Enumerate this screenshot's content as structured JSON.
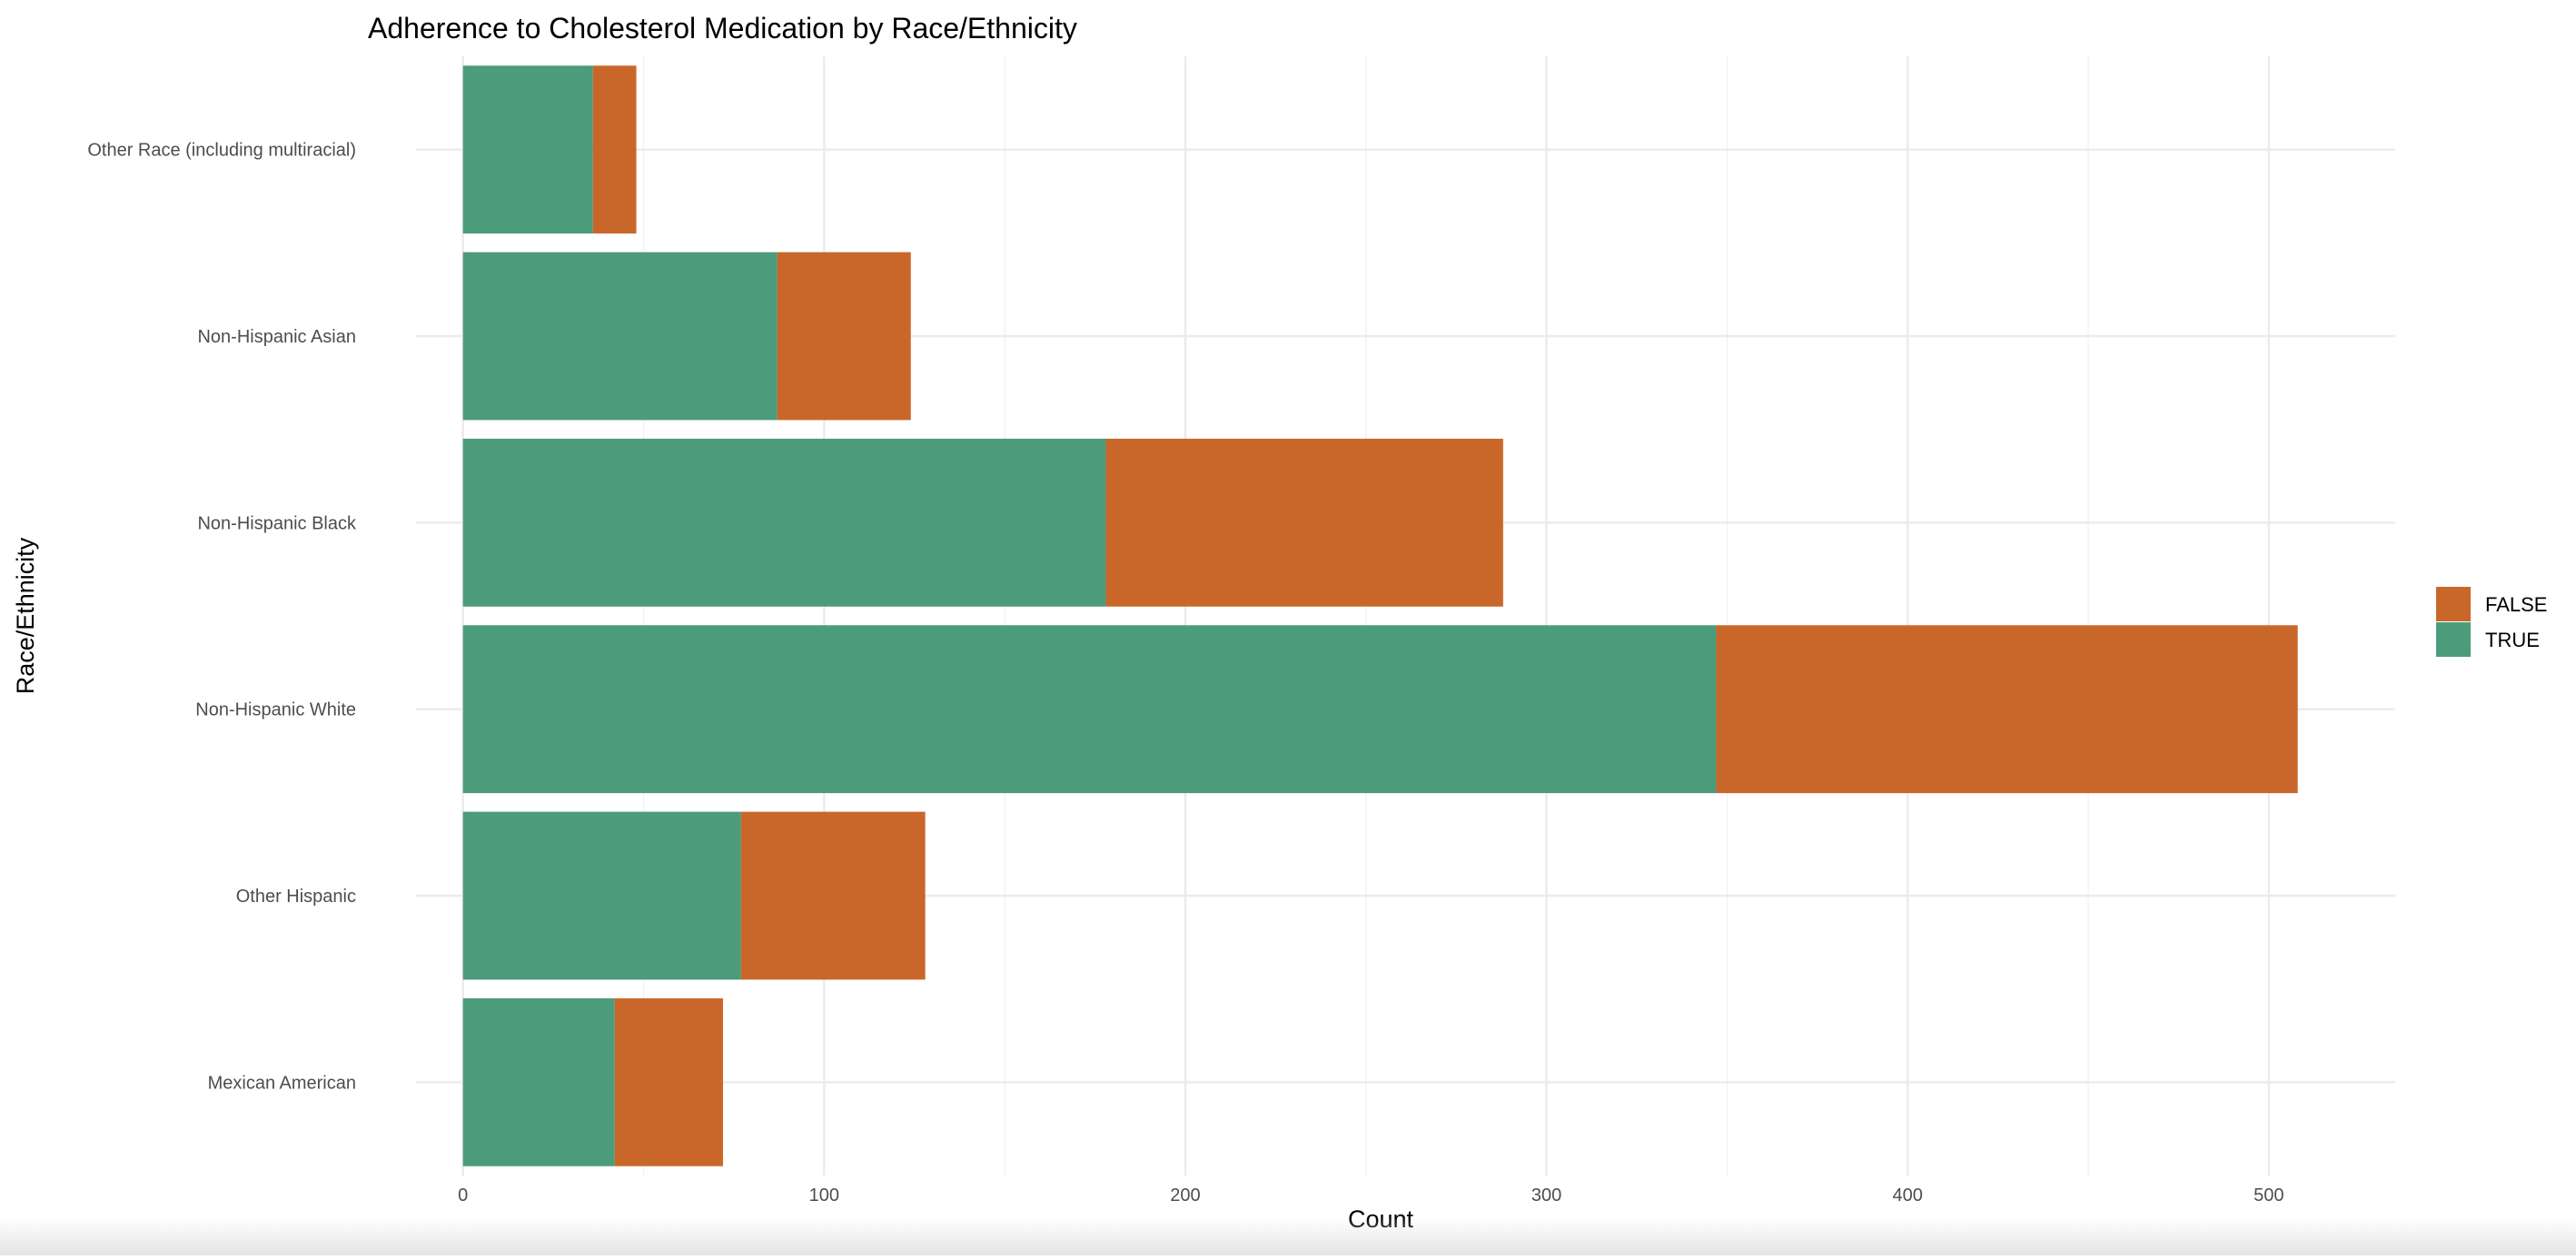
{
  "chart_data": {
    "type": "bar",
    "orientation": "horizontal",
    "stacked": true,
    "title": "Adherence to Cholesterol Medication by Race/Ethnicity",
    "xlabel": "Count",
    "ylabel": "Race/Ethnicity",
    "categories": [
      "Mexican American",
      "Other Hispanic",
      "Non-Hispanic White",
      "Non-Hispanic Black",
      "Non-Hispanic Asian",
      "Other Race (including multiracial)"
    ],
    "series": [
      {
        "name": "TRUE",
        "color": "#4c9b7b",
        "values": [
          42,
          77,
          347,
          178,
          87,
          36
        ]
      },
      {
        "name": "FALSE",
        "color": "#c9672a",
        "values": [
          30,
          51,
          161,
          110,
          37,
          12
        ]
      }
    ],
    "x_ticks": [
      "0",
      "100",
      "200",
      "300",
      "400",
      "500"
    ],
    "xlim": [
      -13,
      535
    ],
    "grid": true,
    "legend": {
      "placement": "right",
      "entries": [
        "FALSE",
        "TRUE"
      ]
    }
  }
}
